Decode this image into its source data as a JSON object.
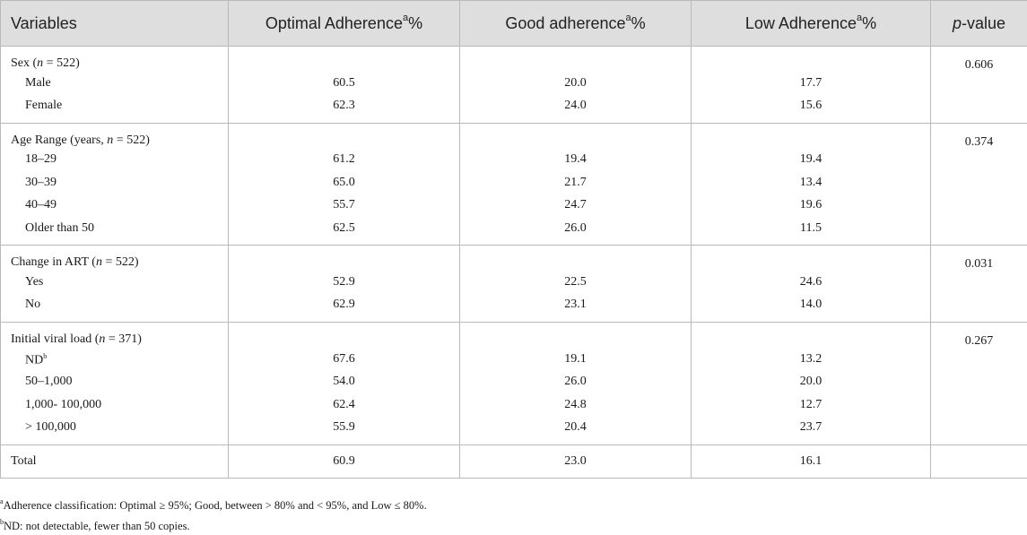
{
  "header": {
    "variables": "Variables",
    "optimal": "Optimal Adherence",
    "optimal_sup": "a",
    "optimal_pct": "%",
    "good": "Good adherence",
    "good_sup": "a",
    "good_pct": "%",
    "low": "Low Adherence",
    "low_sup": "a",
    "low_pct": "%",
    "pvalue_p": "p",
    "pvalue_rest": "-value"
  },
  "groups": [
    {
      "label_pre": "Sex (",
      "label_n": "n",
      "label_post": " = 522)",
      "pvalue": "0.606",
      "rows": [
        {
          "label": "Male",
          "optimal": "60.5",
          "good": "20.0",
          "low": "17.7"
        },
        {
          "label": "Female",
          "optimal": "62.3",
          "good": "24.0",
          "low": "15.6"
        }
      ]
    },
    {
      "label_pre": "Age Range (years, ",
      "label_n": "n",
      "label_post": " = 522)",
      "pvalue": "0.374",
      "rows": [
        {
          "label": "18–29",
          "optimal": "61.2",
          "good": "19.4",
          "low": "19.4"
        },
        {
          "label": "30–39",
          "optimal": "65.0",
          "good": "21.7",
          "low": "13.4"
        },
        {
          "label": "40–49",
          "optimal": "55.7",
          "good": "24.7",
          "low": "19.6"
        },
        {
          "label": "Older than 50",
          "optimal": "62.5",
          "good": "26.0",
          "low": "11.5"
        }
      ]
    },
    {
      "label_pre": "Change in ART (",
      "label_n": "n",
      "label_post": " = 522)",
      "pvalue": "0.031",
      "rows": [
        {
          "label": "Yes",
          "optimal": "52.9",
          "good": "22.5",
          "low": "24.6"
        },
        {
          "label": "No",
          "optimal": "62.9",
          "good": "23.1",
          "low": "14.0"
        }
      ]
    },
    {
      "label_pre": "Initial viral load (",
      "label_n": "n",
      "label_post": " = 371)",
      "pvalue": "0.267",
      "rows": [
        {
          "label": "ND",
          "label_sup": "b",
          "optimal": "67.6",
          "good": "19.1",
          "low": "13.2"
        },
        {
          "label": "50–1,000",
          "optimal": "54.0",
          "good": "26.0",
          "low": "20.0"
        },
        {
          "label": "1,000- 100,000",
          "optimal": "62.4",
          "good": "24.8",
          "low": "12.7"
        },
        {
          "label": "> 100,000",
          "optimal": "55.9",
          "good": "20.4",
          "low": "23.7"
        }
      ]
    }
  ],
  "total": {
    "label": "Total",
    "optimal": "60.9",
    "good": "23.0",
    "low": "16.1"
  },
  "footnotes": [
    {
      "mark": "a",
      "text": "Adherence classification: Optimal ≥ 95%; Good, between > 80% and < 95%, and Low ≤ 80%."
    },
    {
      "mark": "b",
      "text": "ND: not detectable, fewer than 50 copies."
    }
  ]
}
